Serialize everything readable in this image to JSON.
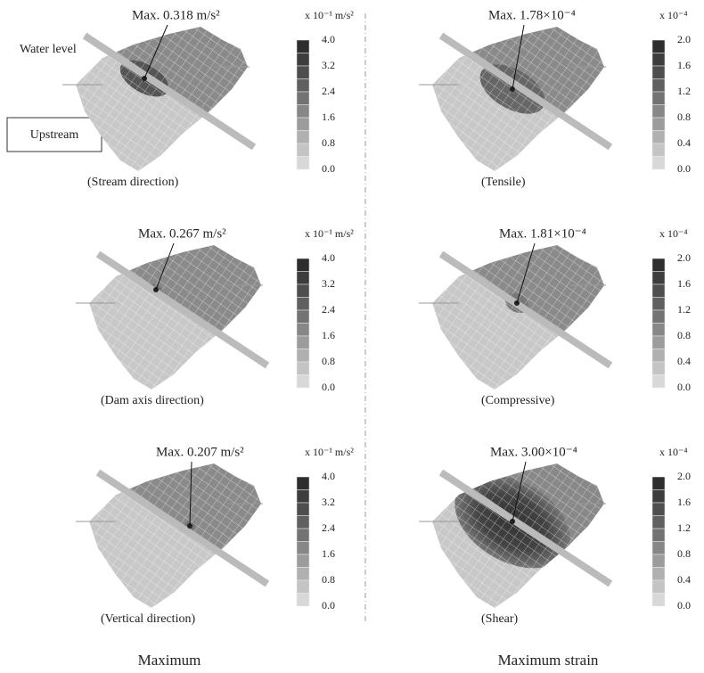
{
  "annotations": {
    "water_level": "Water level",
    "upstream": "Upstream"
  },
  "columns": [
    "Maximum",
    "Maximum strain"
  ],
  "panels": [
    {
      "max_label": "Max. 0.318 m/s²",
      "caption": "(Stream direction)",
      "unit": "x 10⁻¹  m/s²",
      "ticks": [
        "4.0",
        "3.2",
        "2.4",
        "1.6",
        "0.8",
        "0.0"
      ]
    },
    {
      "max_label": "Max. 1.78×10⁻⁴",
      "caption": "(Tensile)",
      "unit": "x 10⁻⁴",
      "ticks": [
        "2.0",
        "1.6",
        "1.2",
        "0.8",
        "0.4",
        "0.0"
      ]
    },
    {
      "max_label": "Max. 0.267 m/s²",
      "caption": "(Dam axis direction)",
      "unit": "x 10⁻¹  m/s²",
      "ticks": [
        "4.0",
        "3.2",
        "2.4",
        "1.6",
        "0.8",
        "0.0"
      ]
    },
    {
      "max_label": "Max. 1.81×10⁻⁴",
      "caption": "(Compressive)",
      "unit": "x 10⁻⁴",
      "ticks": [
        "2.0",
        "1.6",
        "1.2",
        "0.8",
        "0.4",
        "0.0"
      ]
    },
    {
      "max_label": "Max. 0.207 m/s²",
      "caption": "(Vertical direction)",
      "unit": "x 10⁻¹  m/s²",
      "ticks": [
        "4.0",
        "3.2",
        "2.4",
        "1.6",
        "0.8",
        "0.0"
      ]
    },
    {
      "max_label": "Max. 3.00×10⁻⁴",
      "caption": "(Shear)",
      "unit": "x 10⁻⁴",
      "ticks": [
        "2.0",
        "1.6",
        "1.2",
        "0.8",
        "0.4",
        "0.0"
      ]
    }
  ]
}
